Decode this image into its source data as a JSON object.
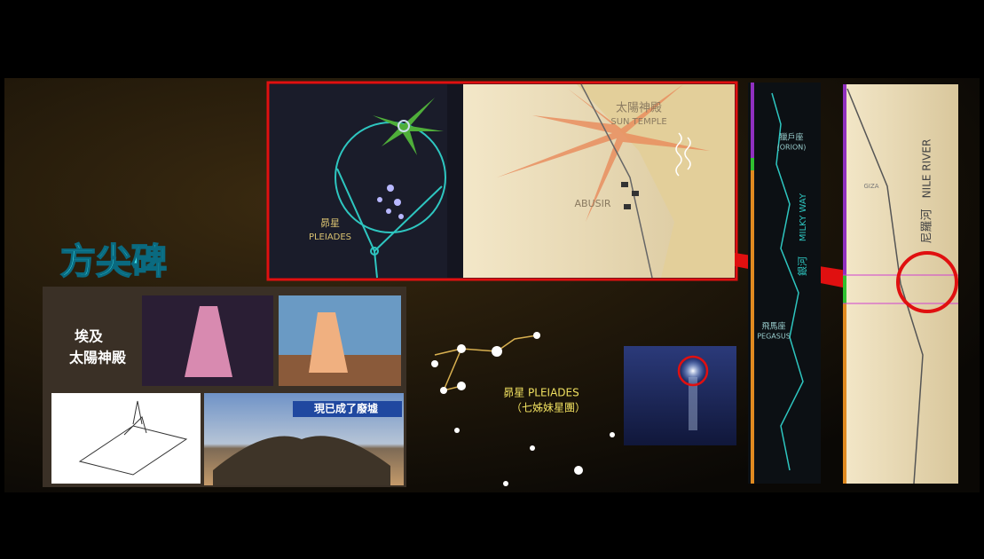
{
  "title": "方尖碑",
  "left_panel": {
    "caption_line1": "埃及",
    "caption_line2": "太陽神殿",
    "ruin_caption": "現已成了廢墟"
  },
  "inset": {
    "star_label_cn": "昴星",
    "star_label_en": "PLEIADES",
    "temple_cn": "太陽神殿",
    "temple_en": "SUN TEMPLE",
    "site": "ABUSIR"
  },
  "center": {
    "label_line1": "昴星 PLEIADES",
    "label_line2": "（七姊妹星團）"
  },
  "sky_strip": {
    "orion_cn": "獵戶座",
    "orion_en": "(ORION)",
    "milky_way_cn": "銀河",
    "milky_way_en": "MILKY WAY",
    "pegasus_cn": "飛馬座",
    "pegasus_en": "PEGASUS"
  },
  "nile_strip": {
    "river_en": "NILE RIVER",
    "river_cn": "尼羅河",
    "giza": "GIZA"
  }
}
